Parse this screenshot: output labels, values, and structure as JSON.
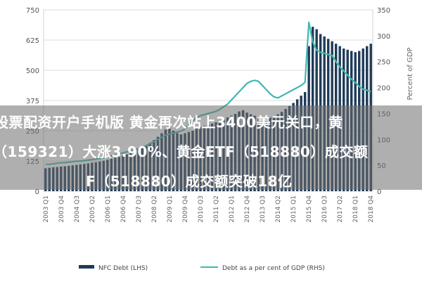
{
  "chart_data": {
    "type": "bar+line",
    "title": "",
    "left_axis": {
      "label": "",
      "range": [
        0,
        750
      ],
      "ticks": [
        "0",
        "125",
        "250",
        "375",
        "500",
        "625",
        "750"
      ]
    },
    "right_axis": {
      "label": "Percent of GDP",
      "range": [
        0,
        350
      ],
      "ticks": [
        "0",
        "50",
        "100",
        "150",
        "200",
        "250",
        "300",
        "350"
      ]
    },
    "x_tick_labels": [
      "2003 Q1",
      "2003 Q4",
      "2004 Q3",
      "2005 Q2",
      "2006 Q1",
      "2006 Q4",
      "2007 Q3",
      "2008 Q2",
      "2009 Q1",
      "2009 Q4",
      "2010 Q3",
      "2011 Q2",
      "2012 Q1",
      "2012 Q4",
      "2013 Q3",
      "2014 Q2",
      "2015 Q1",
      "2015 Q4",
      "2016 Q3",
      "2017 Q2",
      "2018 Q1",
      "2018 Q4"
    ],
    "series": [
      {
        "name": "NFC Debt (LHS)",
        "kind": "bar",
        "color": "#1f3b57",
        "values": [
          95,
          97,
          99,
          100,
          102,
          103,
          105,
          107,
          109,
          111,
          113,
          115,
          118,
          120,
          123,
          126,
          130,
          134,
          138,
          142,
          147,
          152,
          158,
          165,
          172,
          180,
          190,
          200,
          212,
          225,
          240,
          255,
          265,
          250,
          240,
          235,
          240,
          245,
          250,
          258,
          265,
          270,
          275,
          280,
          285,
          290,
          298,
          305,
          312,
          320,
          330,
          335,
          325,
          318,
          312,
          305,
          300,
          300,
          305,
          310,
          318,
          328,
          340,
          352,
          365,
          380,
          395,
          410,
          600,
          680,
          670,
          650,
          640,
          630,
          620,
          610,
          600,
          590,
          585,
          580,
          575,
          580,
          590,
          600,
          610
        ]
      },
      {
        "name": "Debt as a per cent of GDP (RHS)",
        "kind": "line",
        "color": "#3fb8b0",
        "values": [
          52,
          52,
          53,
          54,
          55,
          55,
          56,
          57,
          58,
          58,
          59,
          60,
          61,
          62,
          63,
          64,
          66,
          68,
          70,
          72,
          74,
          76,
          78,
          80,
          82,
          85,
          88,
          92,
          96,
          100,
          104,
          108,
          110,
          112,
          114,
          116,
          120,
          128,
          136,
          142,
          146,
          148,
          150,
          152,
          154,
          158,
          163,
          168,
          176,
          184,
          192,
          200,
          208,
          212,
          214,
          212,
          204,
          196,
          188,
          182,
          180,
          184,
          188,
          192,
          196,
          200,
          204,
          210,
          326,
          288,
          272,
          268,
          266,
          264,
          262,
          250,
          240,
          232,
          224,
          216,
          210,
          202,
          197,
          195,
          192
        ]
      }
    ]
  },
  "legend": {
    "items": [
      {
        "label": "NFC Debt (LHS)",
        "color": "#1f3b57"
      },
      {
        "label": "Debt as a per cent of GDP (RHS)",
        "color": "#3fb8b0"
      }
    ]
  },
  "overlay": {
    "line1": "股票配资开户手机版 黄金再次站上3400美元关口，黄",
    "line2": "（159321）大涨3.90%、黄金ETF（518880）成交额",
    "line3": "F（518880）成交额突破18亿"
  }
}
